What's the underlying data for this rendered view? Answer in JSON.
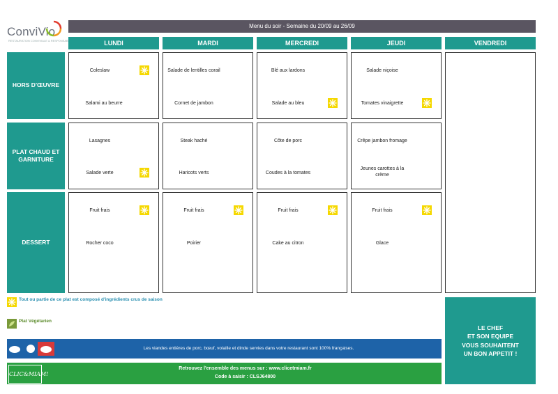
{
  "logo": {
    "name": "ConviVio",
    "tagline": "RESTAURATION CONVIVIALE & RESPONSABLE"
  },
  "title": "Menu du soir - Semaine du 20/09 au 26/09",
  "days": [
    "LUNDI",
    "MARDI",
    "MERCREDI",
    "JEUDI",
    "VENDREDI"
  ],
  "rows": [
    {
      "label": "HORS D'ŒUVRE"
    },
    {
      "label": "PLAT CHAUD ET GARNITURE"
    },
    {
      "label": "DESSERT"
    }
  ],
  "menu": {
    "lundi": {
      "hors": [
        "Coleslaw",
        "Salami au beurre"
      ],
      "plat": [
        "Lasagnes",
        "Salade verte"
      ],
      "dessert": [
        "Fruit frais",
        "Rocher coco"
      ]
    },
    "mardi": {
      "hors": [
        "Salade de lentilles corail",
        "Cornet de jambon"
      ],
      "plat": [
        "Steak haché",
        "Haricots verts"
      ],
      "dessert": [
        "Fruit frais",
        "Poirier"
      ]
    },
    "mercredi": {
      "hors": [
        "Blé aux lardons",
        "Salade au bleu"
      ],
      "plat": [
        "Côte de porc",
        "Coudes à la tomates"
      ],
      "dessert": [
        "Fruit frais",
        "Cake au citron"
      ]
    },
    "jeudi": {
      "hors": [
        "Salade niçoise",
        "Tomates vinaigrette"
      ],
      "plat": [
        "Crêpe jambon fromage",
        "Jeunes carottes à la crème"
      ],
      "dessert": [
        "Fruit frais",
        "Glace"
      ]
    }
  },
  "legend": {
    "raw": "Tout ou partie de ce plat est composé d'ingrédients crus de saison",
    "veg": "Plat Végétarien"
  },
  "meat_notice": "Les viandes entières de porc, bœuf, volaille et dinde servies dans votre restaurant sont 100% françaises.",
  "clic": {
    "logo": "CLIC&MIAM!",
    "line1": "Retrouvez l'ensemble des menus sur : www.clicetmiam.fr",
    "line2": "Code à saisir : CLSJ64800"
  },
  "chef": [
    "LE CHEF",
    "ET SON EQUIPE",
    "VOUS SOUHAITENT",
    "UN BON APPETIT !"
  ],
  "colors": {
    "teal": "#1f9a8f",
    "title_bar": "#5a5561",
    "sun": "#f5d800",
    "blue": "#1e63a8",
    "green": "#2aa041"
  }
}
